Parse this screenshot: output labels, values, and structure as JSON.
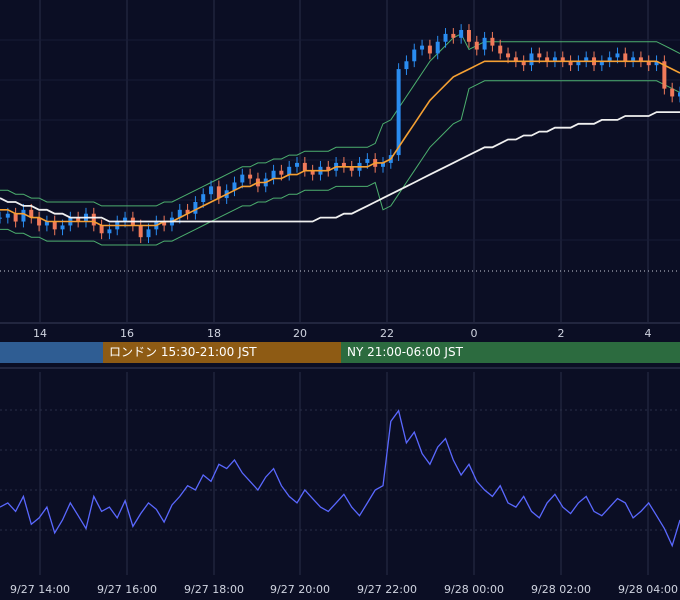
{
  "colors": {
    "background": "#0b0e24",
    "grid": "#2a2f48",
    "candle_up": "#2a8cf0",
    "candle_down": "#f07a5a",
    "ma_short": "#f5a033",
    "ma_long": "#f0f0f0",
    "bollinger": "#4caf6e",
    "oscillator": "#5a68ff"
  },
  "price_axis": {
    "tick_labels": [
      "14",
      "16",
      "18",
      "20",
      "22",
      "0",
      "2",
      "4"
    ]
  },
  "sessions": [
    {
      "label": "",
      "color": "#2f5d93"
    },
    {
      "label": "ロンドン 15:30-21:00 JST",
      "color": "#8e5b14"
    },
    {
      "label": "NY 21:00-06:00 JST",
      "color": "#2c6b3f"
    }
  ],
  "oscillator_axis": {
    "tick_labels": [
      "9/27 14:00",
      "9/27 16:00",
      "9/27 18:00",
      "9/27 20:00",
      "9/27 22:00",
      "9/28 00:00",
      "9/28 02:00",
      "9/28 04:00"
    ]
  },
  "chart_data": [
    {
      "type": "line",
      "description_series": "candlesticks with moving averages and Bollinger bands",
      "x_start_hour": 13,
      "x_end_hour": 29,
      "y_range": [
        0,
        100
      ],
      "candles_close": [
        52,
        53,
        51,
        54,
        52,
        50,
        51,
        49,
        50,
        52,
        51,
        53,
        50,
        48,
        49,
        51,
        52,
        50,
        47,
        49,
        51,
        50,
        52,
        54,
        53,
        56,
        58,
        60,
        57,
        59,
        61,
        63,
        62,
        60,
        62,
        64,
        63,
        65,
        66,
        64,
        63,
        65,
        64,
        66,
        65,
        64,
        66,
        67,
        65,
        66,
        68,
        90,
        92,
        95,
        96,
        94,
        97,
        99,
        98,
        100,
        97,
        95,
        98,
        96,
        94,
        93,
        92,
        91,
        94,
        93,
        92,
        93,
        92,
        91,
        92,
        93,
        91,
        92,
        93,
        94,
        92,
        93,
        92,
        91,
        92,
        85,
        83,
        84
      ],
      "ma_short": [
        54,
        54,
        53,
        53,
        52,
        52,
        51,
        51,
        51,
        51,
        51,
        51,
        51,
        50,
        50,
        50,
        50,
        50,
        50,
        50,
        50,
        51,
        51,
        52,
        53,
        54,
        55,
        56,
        57,
        58,
        59,
        60,
        60,
        61,
        61,
        62,
        62,
        63,
        63,
        64,
        64,
        64,
        64,
        65,
        65,
        65,
        65,
        65,
        66,
        66,
        67,
        70,
        73,
        76,
        79,
        82,
        84,
        86,
        88,
        89,
        90,
        91,
        92,
        92,
        92,
        92,
        92,
        92,
        92,
        92,
        92,
        92,
        92,
        92,
        92,
        92,
        92,
        92,
        92,
        92,
        92,
        92,
        92,
        92,
        92,
        91,
        90,
        89
      ],
      "ma_long": [
        57,
        56,
        56,
        55,
        55,
        54,
        54,
        53,
        53,
        52,
        52,
        52,
        52,
        52,
        51,
        51,
        51,
        51,
        51,
        51,
        51,
        51,
        51,
        51,
        51,
        51,
        51,
        51,
        51,
        51,
        51,
        51,
        51,
        51,
        51,
        51,
        51,
        51,
        51,
        51,
        51,
        52,
        52,
        52,
        53,
        53,
        54,
        55,
        56,
        57,
        58,
        59,
        60,
        61,
        62,
        63,
        64,
        65,
        66,
        67,
        68,
        69,
        70,
        70,
        71,
        72,
        72,
        73,
        73,
        74,
        74,
        75,
        75,
        75,
        76,
        76,
        76,
        77,
        77,
        77,
        78,
        78,
        78,
        78,
        79,
        79,
        79,
        79
      ]
    },
    {
      "type": "line",
      "y_range": [
        0,
        100
      ],
      "values": [
        50,
        52,
        48,
        55,
        42,
        45,
        50,
        38,
        44,
        52,
        46,
        40,
        55,
        48,
        50,
        45,
        53,
        41,
        47,
        52,
        49,
        43,
        51,
        55,
        60,
        58,
        65,
        62,
        70,
        68,
        72,
        66,
        62,
        58,
        64,
        68,
        60,
        55,
        52,
        58,
        54,
        50,
        48,
        52,
        56,
        50,
        46,
        52,
        58,
        60,
        90,
        95,
        80,
        85,
        75,
        70,
        78,
        82,
        72,
        65,
        70,
        62,
        58,
        55,
        60,
        52,
        50,
        55,
        48,
        45,
        52,
        56,
        50,
        47,
        52,
        55,
        48,
        46,
        50,
        54,
        52,
        45,
        48,
        52,
        46,
        40,
        32,
        44
      ]
    }
  ]
}
